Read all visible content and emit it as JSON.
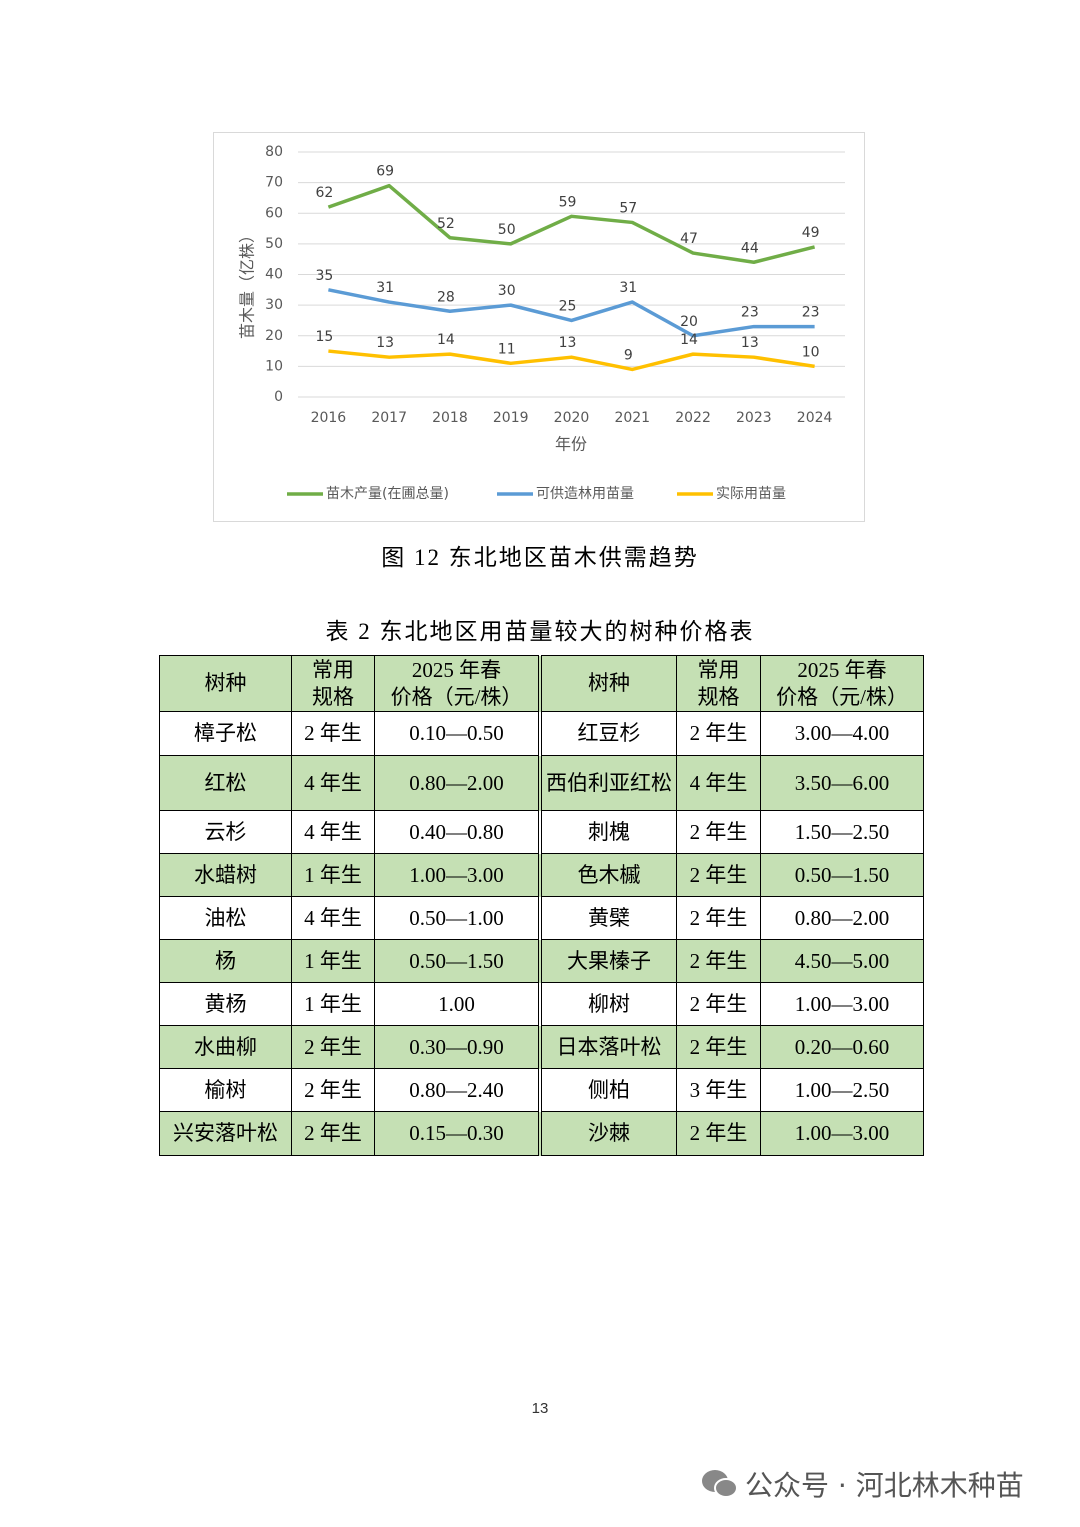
{
  "chart_data": {
    "type": "line",
    "categories": [
      "2016",
      "2017",
      "2018",
      "2019",
      "2020",
      "2021",
      "2022",
      "2023",
      "2024"
    ],
    "x_label": "年份",
    "y_label": "苗木量（亿株）",
    "ylim": [
      0,
      80
    ],
    "yticks": [
      0,
      10,
      20,
      30,
      40,
      50,
      60,
      70,
      80
    ],
    "grid": true,
    "legend": "bottom",
    "series": [
      {
        "name": "苗木产量(在圃总量)",
        "color": "#70ad47",
        "values": [
          62,
          69,
          52,
          50,
          59,
          57,
          47,
          44,
          49
        ]
      },
      {
        "name": "可供造林用苗量",
        "color": "#5b9bd5",
        "values": [
          35,
          31,
          28,
          30,
          25,
          31,
          20,
          23,
          23
        ]
      },
      {
        "name": "实际用苗量",
        "color": "#ffc000",
        "values": [
          15,
          13,
          14,
          11,
          13,
          9,
          14,
          13,
          10
        ]
      }
    ]
  },
  "figure_caption": "图 12  东北地区苗木供需趋势",
  "table": {
    "title": "表 2  东北地区用苗量较大的树种价格表",
    "header": [
      "树种",
      "常用\n规格",
      "2025 年春\n价格（元/株）",
      "树种",
      "常用\n规格",
      "2025 年春\n价格（元/株）"
    ],
    "rows": [
      [
        "樟子松",
        "2 年生",
        "0.10—0.50",
        "红豆杉",
        "2 年生",
        "3.00—4.00"
      ],
      [
        "红松",
        "4 年生",
        "0.80—2.00",
        "西伯利亚红松",
        "4 年生",
        "3.50—6.00"
      ],
      [
        "云杉",
        "4 年生",
        "0.40—0.80",
        "刺槐",
        "2 年生",
        "1.50—2.50"
      ],
      [
        "水蜡树",
        "1 年生",
        "1.00—3.00",
        "色木槭",
        "2 年生",
        "0.50—1.50"
      ],
      [
        "油松",
        "4 年生",
        "0.50—1.00",
        "黄檗",
        "2 年生",
        "0.80—2.00"
      ],
      [
        "杨",
        "1 年生",
        "0.50—1.50",
        "大果榛子",
        "2 年生",
        "4.50—5.00"
      ],
      [
        "黄杨",
        "1 年生",
        "1.00",
        "柳树",
        "2 年生",
        "1.00—3.00"
      ],
      [
        "水曲柳",
        "2 年生",
        "0.30—0.90",
        "日本落叶松",
        "2 年生",
        "0.20—0.60"
      ],
      [
        "榆树",
        "2 年生",
        "0.80—2.40",
        "侧柏",
        "3 年生",
        "1.00—2.50"
      ],
      [
        "兴安落叶松",
        "2 年生",
        "0.15—0.30",
        "沙棘",
        "2 年生",
        "1.00—3.00"
      ]
    ]
  },
  "page_number": "13",
  "watermark": "公众号 · 河北林木种苗"
}
